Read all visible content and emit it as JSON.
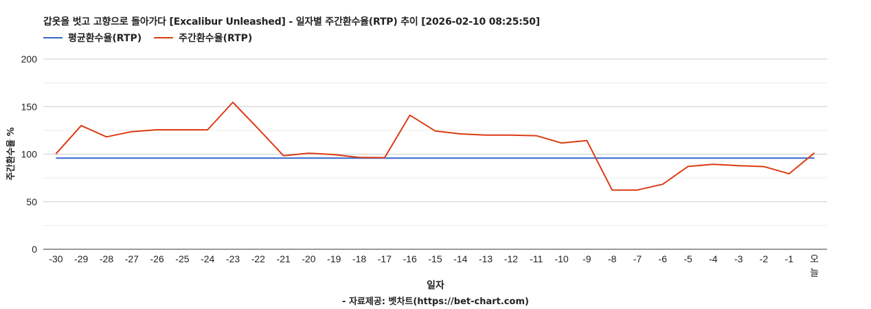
{
  "title": "갑옷을 벗고 고향으로 돌아가다 [Excalibur Unleashed] - 일자별 주간환수율(RTP) 추이 [2026-02-10 08:25:50]",
  "legend": {
    "items": [
      {
        "label": "평균환수율(RTP)",
        "color": "#3366cc"
      },
      {
        "label": "주간환수율(RTP)",
        "color": "#dc3912"
      }
    ]
  },
  "axes": {
    "xlabel": "일자",
    "ylabel": "주간환수율 %"
  },
  "footer": "- 자료제공: 벳차트(https://bet-chart.com)",
  "chart_data": {
    "type": "line",
    "title": "갑옷을 벗고 고향으로 돌아가다 [Excalibur Unleashed] - 일자별 주간환수율(RTP) 추이 [2026-02-10 08:25:50]",
    "xlabel": "일자",
    "ylabel": "주간환수율 %",
    "ylim": [
      0,
      200
    ],
    "yticks": [
      0,
      50,
      100,
      150,
      200
    ],
    "grid": true,
    "legend_position": "top",
    "categories": [
      "-30",
      "-29",
      "-28",
      "-27",
      "-26",
      "-25",
      "-24",
      "-23",
      "-22",
      "-21",
      "-20",
      "-19",
      "-18",
      "-17",
      "-16",
      "-15",
      "-14",
      "-13",
      "-12",
      "-11",
      "-10",
      "-9",
      "-8",
      "-7",
      "-6",
      "-5",
      "-4",
      "-3",
      "-2",
      "-1",
      "오늘"
    ],
    "series": [
      {
        "name": "평균환수율(RTP)",
        "color": "#3366cc",
        "values": [
          95.8,
          95.8,
          95.8,
          95.8,
          95.8,
          95.8,
          95.8,
          95.8,
          95.8,
          95.8,
          95.8,
          95.8,
          95.8,
          95.8,
          95.8,
          95.8,
          95.8,
          95.8,
          95.8,
          95.8,
          95.8,
          95.8,
          95.8,
          95.8,
          95.8,
          95.8,
          95.8,
          95.8,
          95.8,
          95.8,
          95.8
        ]
      },
      {
        "name": "주간환수율(RTP)",
        "color": "#dc3912",
        "values": [
          100.3,
          130.0,
          118.2,
          123.7,
          125.6,
          125.6,
          125.6,
          154.5,
          126.8,
          98.4,
          101.0,
          99.6,
          96.5,
          96.3,
          141.0,
          124.4,
          121.3,
          120.0,
          120.0,
          119.4,
          111.7,
          114.3,
          62.3,
          62.3,
          68.4,
          87.1,
          89.3,
          87.9,
          86.9,
          79.4,
          101.3
        ]
      }
    ]
  }
}
